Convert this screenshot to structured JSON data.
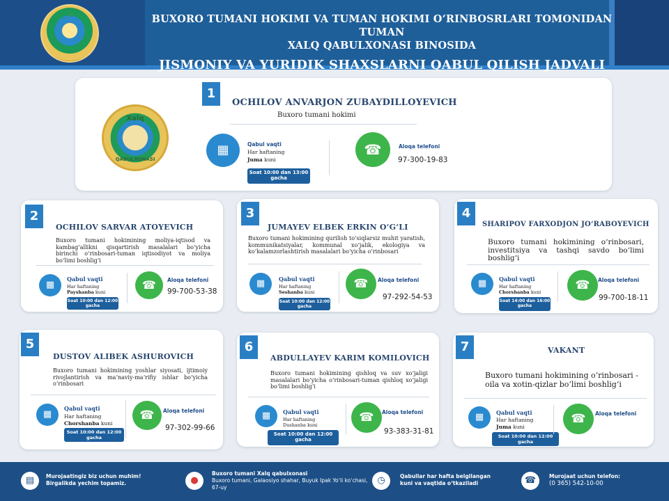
{
  "header": {
    "title_line1": "BUXORO TUMANI HOKIMI VA TUMAN HOKIMI O‘RINBOSRLARI TOMONIDAN TUMAN",
    "title_line2": "XALQ QABULXONASI BINOSIDA",
    "subtitle": "JISMONIY VA YURIDIK SHAXSLARNI QABUL QILISH JADVALI"
  },
  "logo": {
    "top": "Xalq",
    "bottom": "QABULXONASI"
  },
  "labels": {
    "qabul": "Qabul vaqti",
    "aloqa": "Aloqa telefoni",
    "har": "Har haftaning"
  },
  "cards": [
    {
      "num": "1",
      "name": "OCHILOV ANVARJON ZUBAYDILLOYEVICH",
      "position": "Buxoro tumani hokimi",
      "day": "Juma",
      "day_suffix": " kuni",
      "time": "Soat 10:00 dan 13:00 gacha",
      "phone": "97-300-19-83"
    },
    {
      "num": "2",
      "name": "OCHILOV SARVAR ATOYEVICH",
      "position": "Buxoro tumani hokimining moliya-iqtisod va kambag‘allikni qisqartirish masalalari bo‘yicha birinchi o‘rinbosari-tuman iqtisodiyot va moliya bo‘limi boshlig‘i",
      "day": "Payshanba",
      "day_suffix": " kuni",
      "time": "Soat 10:00 dan 12:00 gacha",
      "phone": "99-700-53-38"
    },
    {
      "num": "3",
      "name": "JUMAYEV ELBEK ERKIN O‘G‘LI",
      "position": "Buxoro tumani hokimining qurilish to‘siqlarsiz muhit yaratish, kommunikatsiyalar, kommunal xo‘jalik, ekologiya va ko‘kalamzorlashtirish masalalari bo‘yicha o‘rinbosari",
      "day": "Seshanba",
      "day_suffix": " kuni",
      "time": "Soat 10:00 dan 12:00 gacha",
      "phone": "97-292-54-53"
    },
    {
      "num": "4",
      "name": "SHARIPOV FARXODJON JO‘RABOYEVICH",
      "position": "Buxoro tumani hokimining o‘rinbosari, investitsiya va tashqi savdo bo‘limi boshlig‘i",
      "day": "Chorshanba",
      "day_suffix": " kuni",
      "time": "Soat 14:00 dan 16:00 gacha",
      "phone": "99-700-18-11"
    },
    {
      "num": "5",
      "name": "DUSTOV ALIBEK ASHUROVICH",
      "position": "Buxoro tumani hokimining yoshlar siyosati, ijtimoiy rivojlantirish va ma‘naviy-ma‘rifiy ishlar bo‘yicha o‘rinbosari",
      "day": "Chorshanba",
      "day_suffix": " kuni",
      "time": "Soat 10:00 dan 12:00 gacha",
      "phone": "97-302-99-66"
    },
    {
      "num": "6",
      "name": "ABDULLAYEV KARIM KOMILOVICH",
      "position": "Buxoro tumani hokimining qishloq va suv xo‘jaligi masalalari bo‘yicha o‘rinbosari-tuman qishloq xo‘jaligi bo‘limi boshlig‘i",
      "day": "Dushanba",
      "day_suffix": " kuni",
      "time": "Soat 10:00 dan 12:00 gacha",
      "phone": "93-383-31-81"
    },
    {
      "num": "7",
      "name": "VAKANT",
      "position": "Buxoro tumani hokimining o‘rinbosari - oila va xotin-qizlar bo‘limi boshlig‘i",
      "day": "Juma",
      "day_suffix": " kuni",
      "time": "Soat 10:00 dan 12:00 gacha",
      "phone": ""
    }
  ],
  "footer": {
    "f1_l1": "Murojaatingiz biz uchun muhim!",
    "f1_l2": "Birgalikda yechim topamiz.",
    "f2_l1": "Buxoro tumani Xalq qabulxonasi",
    "f2_l2": "Buxoro tumani, Galaosiyo shahar, Buyuk Ipak Yo‘li ko‘chasi,",
    "f2_l3": "67-uy",
    "f3_l1": "Qabullar har hafta belgilangan",
    "f3_l2": "kuni va vaqtida o‘tkaziladi",
    "f4_l1": "Murojaat uchun telefon:",
    "f4_l2": "(0 365) 542-10-00"
  },
  "icons": {
    "calendar": "calendar-icon",
    "phone": "phone-icon",
    "document": "document-icon",
    "location": "location-pin-icon",
    "clock": "clock-icon"
  }
}
